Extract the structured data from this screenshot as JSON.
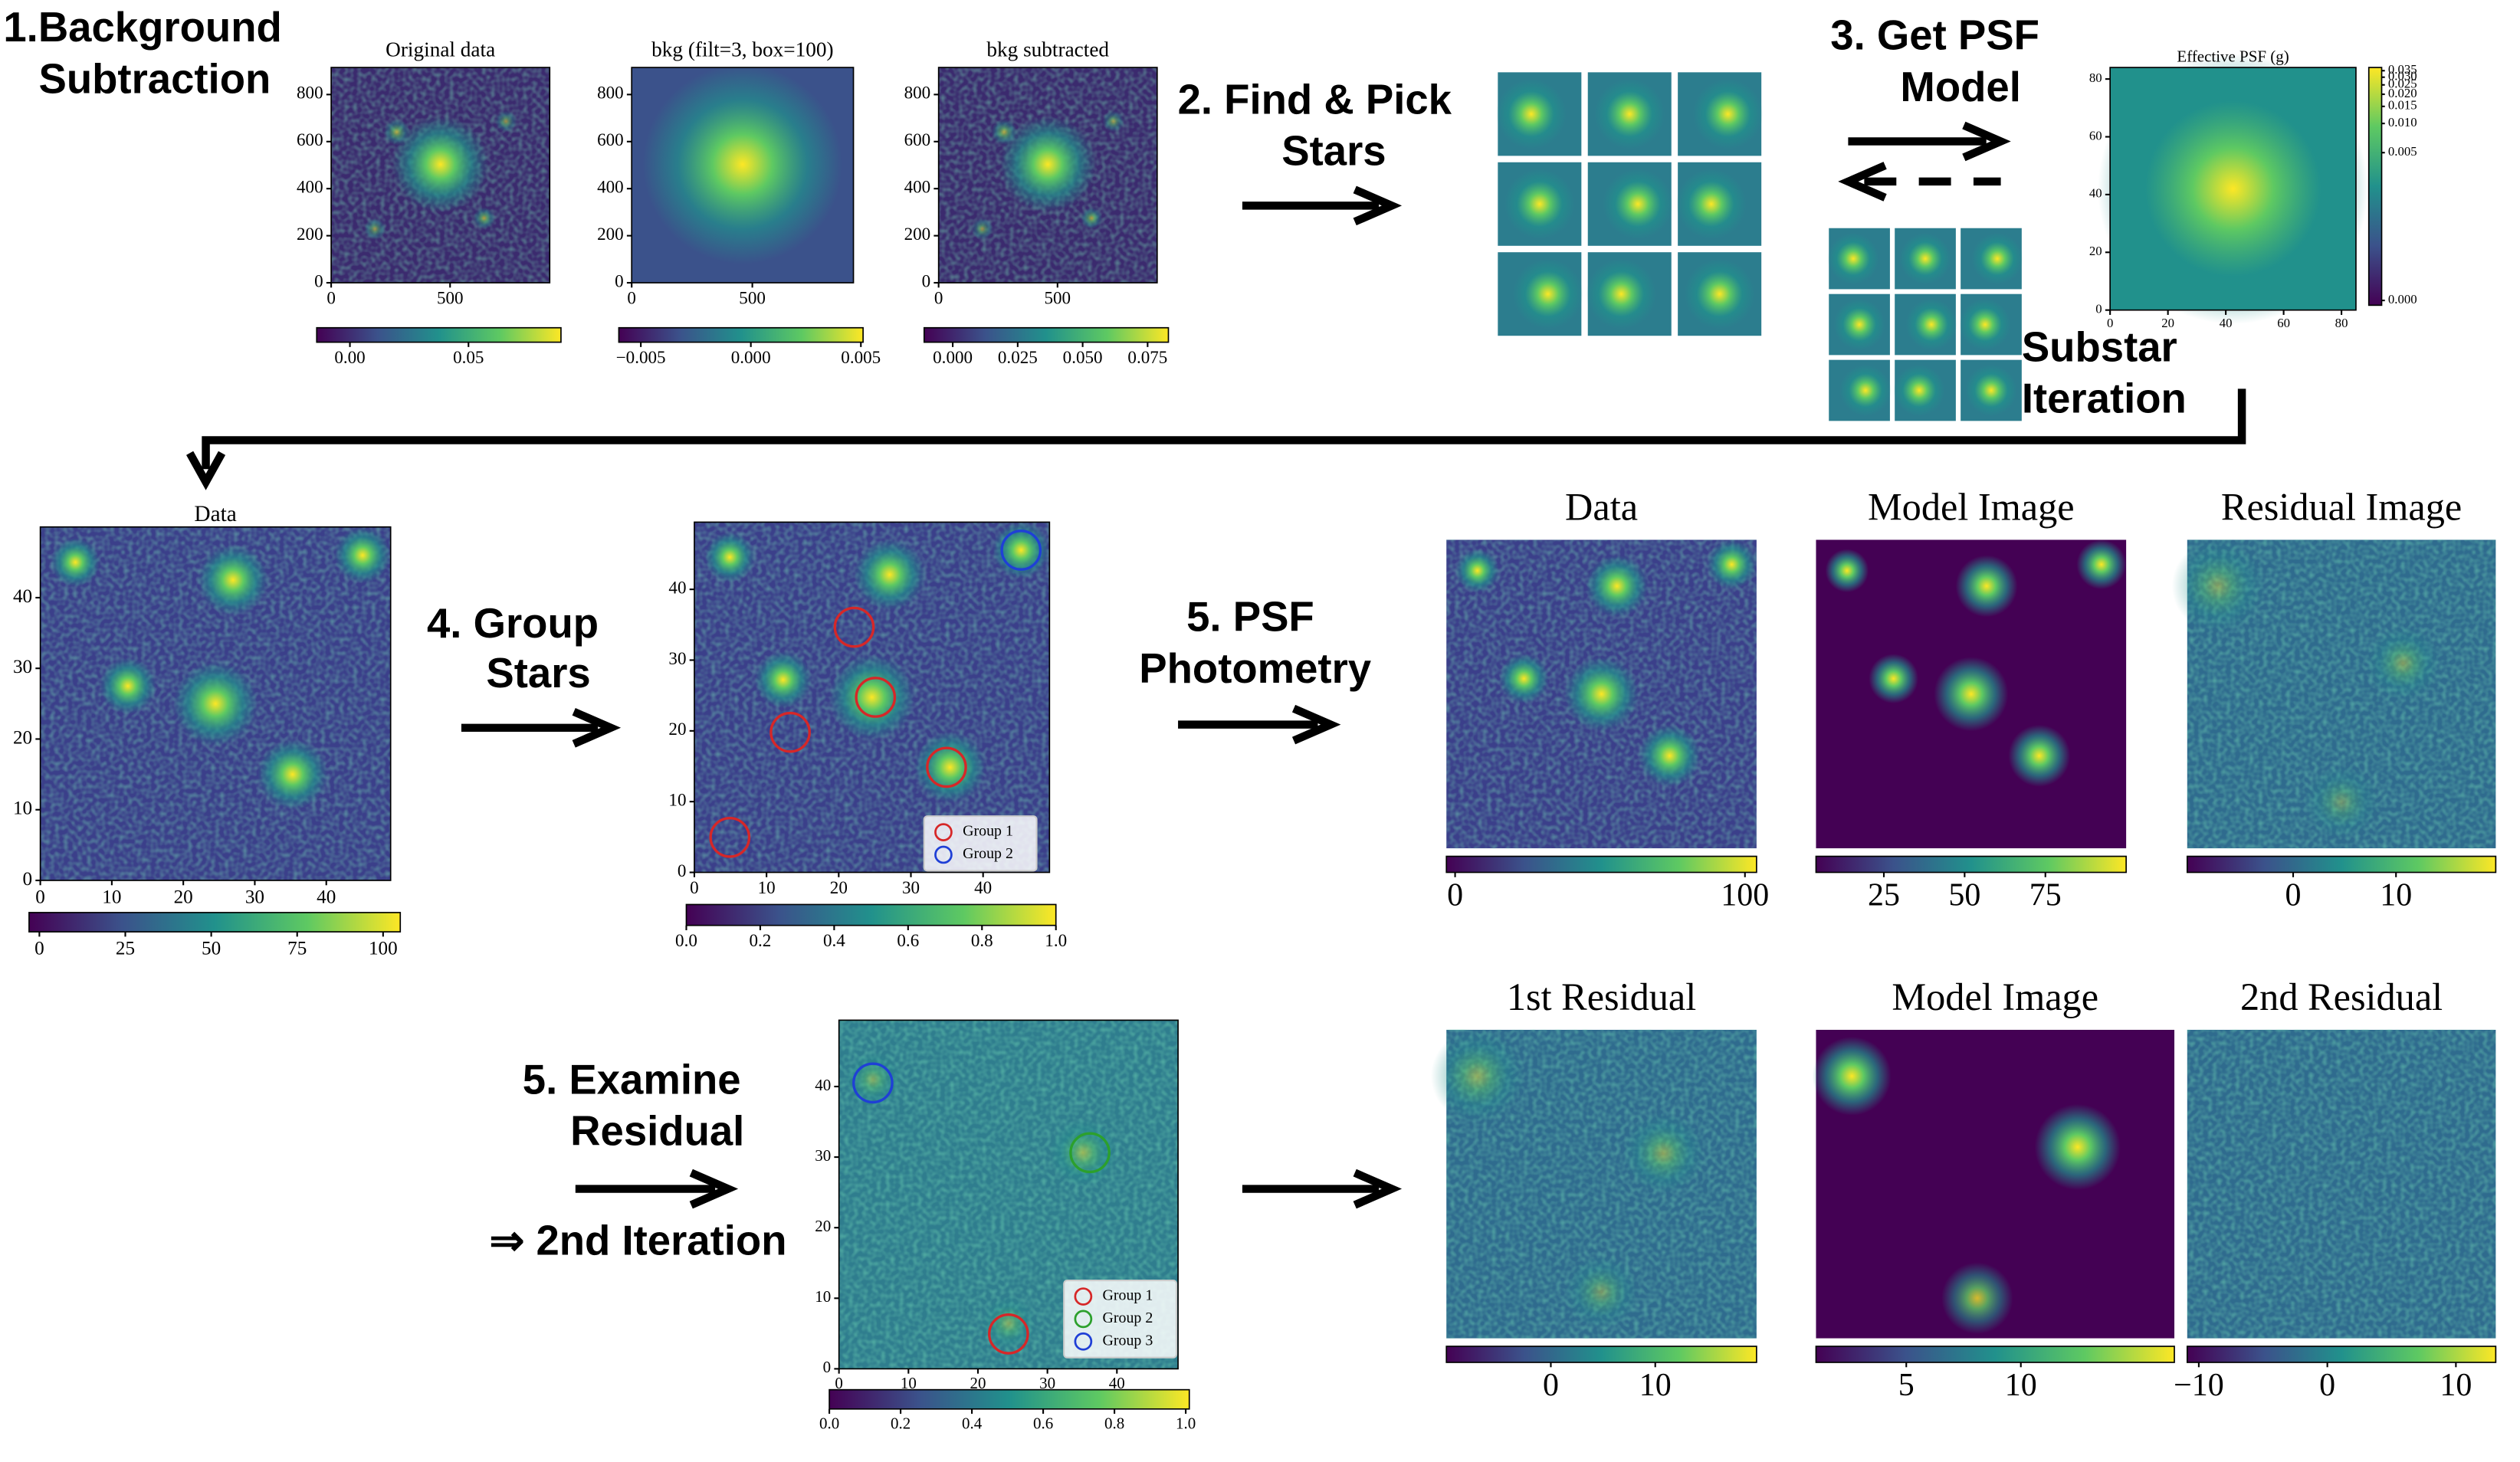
{
  "steps": [
    {
      "lines": [
        "1.Background",
        "Subtraction"
      ]
    },
    {
      "lines": [
        "2. Find & Pick",
        "Stars"
      ]
    },
    {
      "lines": [
        "3. Get PSF",
        "Model"
      ]
    },
    {
      "lines": [
        "Substar",
        "Iteration"
      ]
    },
    {
      "lines": [
        "4. Group",
        "Stars"
      ]
    },
    {
      "lines": [
        "5. PSF",
        "Photometry"
      ]
    },
    {
      "lines": [
        "5. Examine",
        "Residual",
        "⇒ 2nd Iteration"
      ]
    }
  ],
  "panels": [
    {
      "title": "Original data",
      "xlim": [
        0,
        919
      ],
      "xticks": [
        0,
        500
      ],
      "ylim": [
        0,
        915
      ],
      "yticks": [
        0,
        200,
        400,
        600,
        800
      ],
      "cblim": [
        -0.014,
        0.089
      ],
      "cbticks": [
        {
          "value": 0,
          "label": "0.00"
        },
        {
          "value": 0.05,
          "label": "0.05"
        }
      ]
    },
    {
      "title": "bkg (filt=3, box=100)",
      "xlim": [
        0,
        919
      ],
      "xticks": [
        0,
        500
      ],
      "ylim": [
        0,
        915
      ],
      "yticks": [
        0,
        200,
        400,
        600,
        800
      ],
      "cblim": [
        -0.006,
        0.0051
      ],
      "cbticks": [
        {
          "value": -0.005,
          "label": "−0.005"
        },
        {
          "value": 0,
          "label": "0.000"
        },
        0.005
      ]
    },
    {
      "title": "bkg subtracted",
      "xlim": [
        0,
        919
      ],
      "xticks": [
        0,
        500
      ],
      "ylim": [
        0,
        915
      ],
      "yticks": [
        0,
        200,
        400,
        600,
        800
      ],
      "cblim": [
        -0.011,
        0.083
      ],
      "cbticks": [
        {
          "value": 0,
          "label": "0.000"
        },
        0.025,
        {
          "value": 0.05,
          "label": "0.050"
        },
        0.075
      ]
    },
    {
      "title": "Effective PSF (g)",
      "xlim": [
        0,
        85
      ],
      "xticks": [
        0,
        20,
        40,
        60,
        80
      ],
      "ylim": [
        0,
        84
      ],
      "yticks": [
        0,
        20,
        40,
        60,
        80
      ],
      "cblim": [
        0,
        0.035
      ],
      "cbticks": [
        0.035,
        {
          "value": 0.03,
          "label": "0.030"
        },
        0.025,
        {
          "value": 0.02,
          "label": "0.020"
        },
        0.015,
        {
          "value": 0.01,
          "label": "0.010"
        },
        0.005,
        {
          "value": 0,
          "label": "0.000"
        }
      ]
    },
    {
      "title": "Data",
      "xlim": [
        0,
        49
      ],
      "xticks": [
        0,
        10,
        20,
        30,
        40
      ],
      "ylim": [
        0,
        50
      ],
      "yticks": [
        0,
        10,
        20,
        30,
        40
      ],
      "cblim": [
        -3,
        105
      ],
      "cbticks": [
        0,
        25,
        50,
        75,
        100
      ]
    },
    {
      "xlim": [
        0,
        49.2
      ],
      "xticks": [
        0,
        10,
        20,
        30,
        40
      ],
      "ylim": [
        0,
        49.5
      ],
      "yticks": [
        0,
        10,
        20,
        30,
        40
      ],
      "cblim": [
        0,
        1
      ],
      "cbticks": [
        {
          "value": 0,
          "label": "0.0"
        },
        0.2,
        0.4,
        0.6,
        0.8,
        {
          "value": 1,
          "label": "1.0"
        }
      ],
      "legend": [
        {
          "name": "Group 1",
          "color": "#d62728"
        },
        {
          "name": "Group 2",
          "color": "#1f3fd6"
        }
      ]
    },
    {
      "title": "Data",
      "cblim": [
        -3,
        104
      ],
      "cbticks": [
        0,
        100
      ]
    },
    {
      "title": "Model Image",
      "cblim": [
        4,
        100
      ],
      "cbticks": [
        25,
        50,
        75
      ]
    },
    {
      "title": "Residual Image",
      "cblim": [
        -10.3,
        19.7
      ],
      "cbticks": [
        0,
        10
      ]
    },
    {
      "title": "1st Residual",
      "cblim": [
        -10,
        19.7
      ],
      "cbticks": [
        0,
        10
      ]
    },
    {
      "title": "Model Image",
      "cblim": [
        1.06,
        16.7
      ],
      "cbticks": [
        5,
        10
      ]
    },
    {
      "title": "2nd Residual",
      "cblim": [
        -10.9,
        13.1
      ],
      "cbticks": [
        {
          "value": -10,
          "label": "−10"
        },
        0,
        10
      ]
    },
    {
      "xlim": [
        0,
        48.8
      ],
      "xticks": [
        0,
        10,
        20,
        30,
        40
      ],
      "ylim": [
        0,
        49.4
      ],
      "yticks": [
        0,
        10,
        20,
        30,
        40
      ],
      "cblim": [
        0,
        1.01
      ],
      "cbticks": [
        {
          "value": 0,
          "label": "0.0"
        },
        0.2,
        0.4,
        0.6,
        0.8,
        {
          "value": 1,
          "label": "1.0"
        }
      ],
      "legend": [
        {
          "name": "Group 1",
          "color": "#d62728"
        },
        {
          "name": "Group 2",
          "color": "#2ca02c"
        },
        {
          "name": "Group 3",
          "color": "#1f3fd6"
        }
      ]
    }
  ]
}
